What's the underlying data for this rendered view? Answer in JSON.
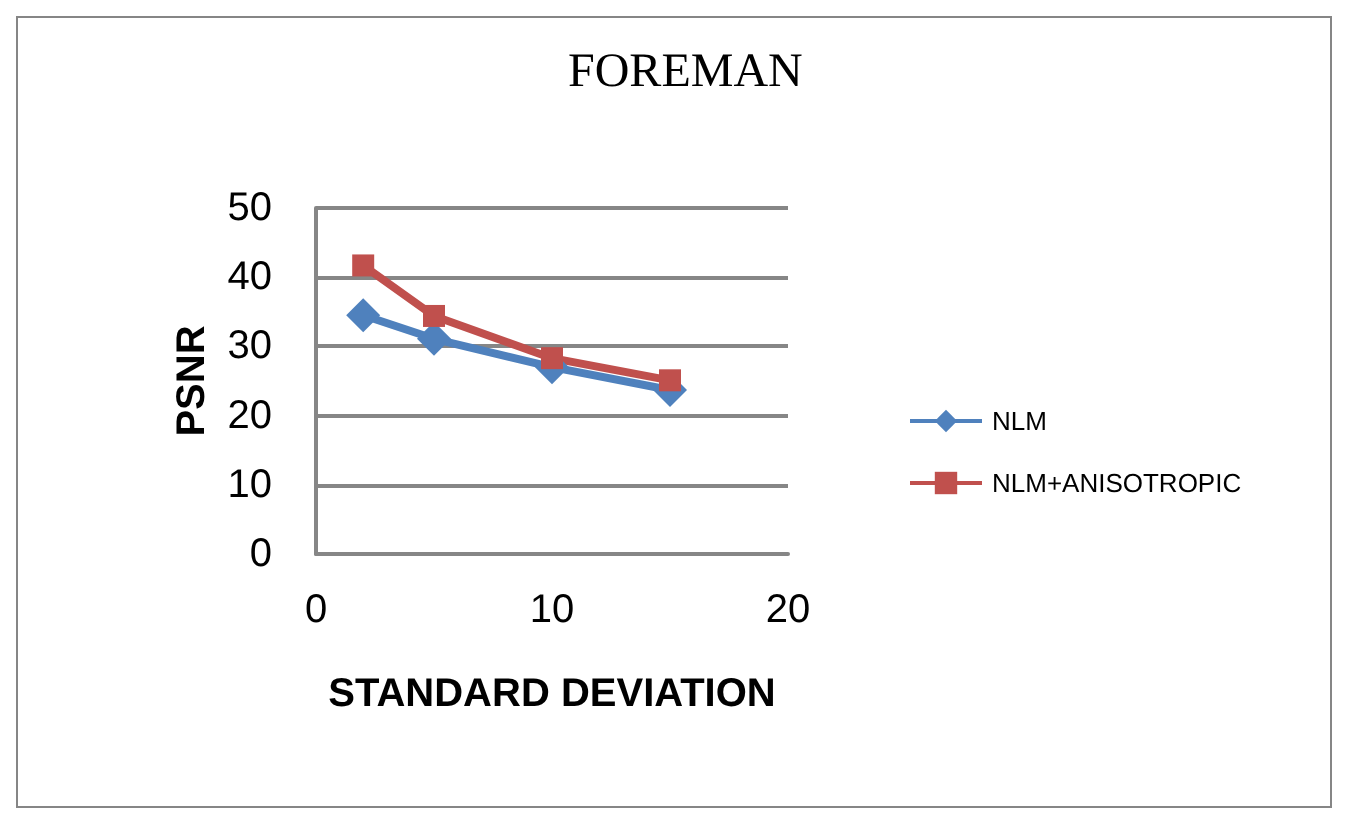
{
  "chart_data": {
    "type": "line",
    "title": "FOREMAN",
    "xlabel": "STANDARD DEVIATION",
    "ylabel": "PSNR",
    "x": [
      2,
      5,
      10,
      15
    ],
    "series": [
      {
        "name": "NLM",
        "color": "#4f81bd",
        "marker": "diamond",
        "values": [
          34.5,
          31.1,
          27,
          23.7
        ]
      },
      {
        "name": "NLM+ANISOTROPIC",
        "color": "#c0504d",
        "marker": "square",
        "values": [
          41.7,
          34.4,
          28.3,
          25.1
        ]
      }
    ],
    "xlim": [
      0,
      20
    ],
    "xticks": [
      0,
      10,
      20
    ],
    "ylim": [
      0,
      50
    ],
    "yticks": [
      0,
      10,
      20,
      30,
      40,
      50
    ],
    "grid": "y",
    "legend": "right"
  }
}
